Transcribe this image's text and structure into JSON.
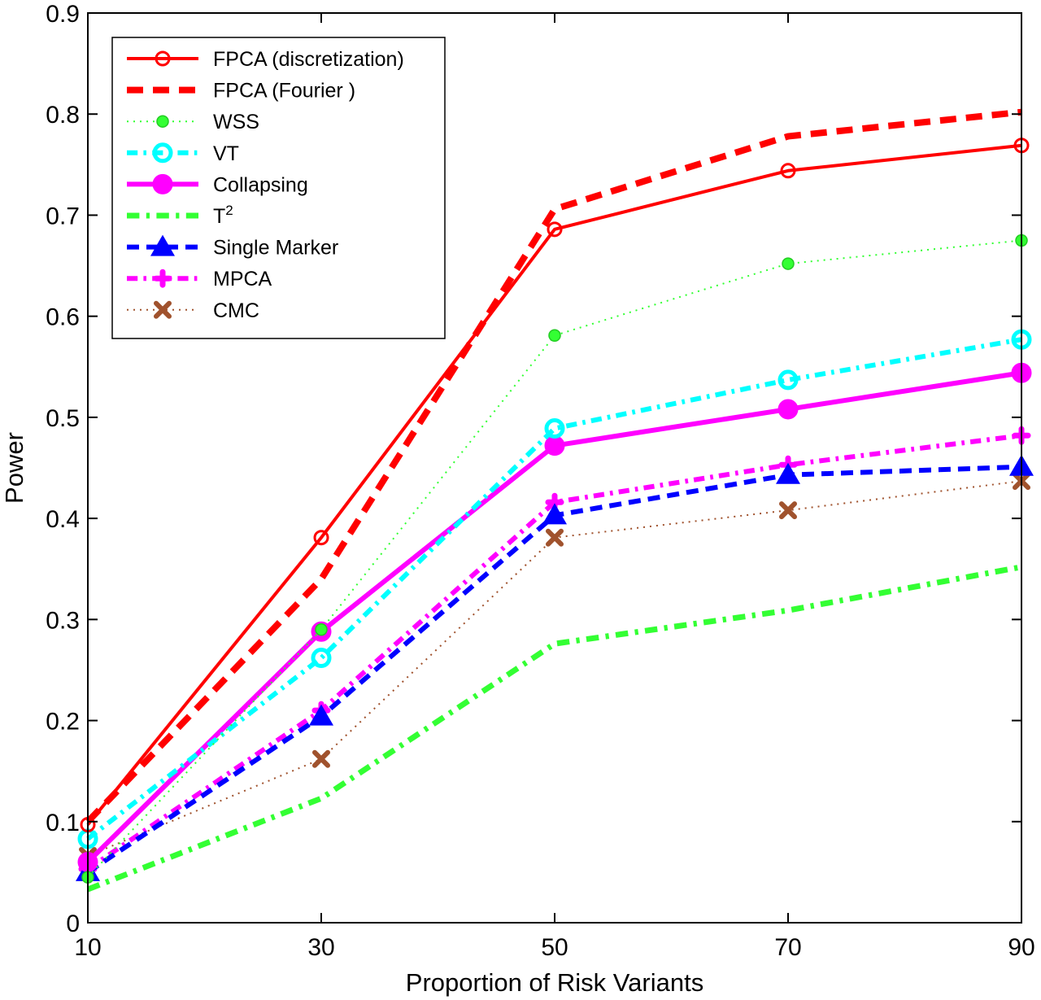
{
  "chart_data": {
    "type": "line",
    "xlabel": "Proportion of Risk Variants",
    "ylabel": "Power",
    "x": [
      10,
      30,
      50,
      70,
      90
    ],
    "xlim": [
      10,
      90
    ],
    "ylim": [
      0,
      0.9
    ],
    "xticks": [
      "10",
      "30",
      "50",
      "70",
      "90"
    ],
    "yticks": [
      "0",
      "0.1",
      "0.2",
      "0.3",
      "0.4",
      "0.5",
      "0.6",
      "0.7",
      "0.8",
      "0.9"
    ],
    "legend_position": "top-left",
    "grid": false,
    "series": [
      {
        "name": "FPCA (discretization)",
        "values": [
          0.097,
          0.381,
          0.686,
          0.744,
          0.769
        ],
        "color": "#ff0000",
        "dash": "solid",
        "marker": "circle-open",
        "width": 4
      },
      {
        "name": "FPCA (Fourier )",
        "values": [
          0.1,
          0.34,
          0.706,
          0.778,
          0.802
        ],
        "color": "#ff0000",
        "dash": "dash",
        "marker": "none",
        "width": 8
      },
      {
        "name": "WSS",
        "values": [
          0.045,
          0.29,
          0.581,
          0.652,
          0.675
        ],
        "color": "#33ff33",
        "dash": "dot",
        "marker": "dot",
        "width": 2
      },
      {
        "name": "VT",
        "values": [
          0.083,
          0.262,
          0.489,
          0.537,
          0.577
        ],
        "color": "#00ffff",
        "dash": "dashdot",
        "marker": "circle-open-large",
        "width": 6
      },
      {
        "name": "Collapsing",
        "values": [
          0.06,
          0.288,
          0.472,
          0.508,
          0.544
        ],
        "color": "#ff00ff",
        "dash": "solid",
        "marker": "circle-filled",
        "width": 6
      },
      {
        "name": "T",
        "sup": "2",
        "values": [
          0.033,
          0.123,
          0.276,
          0.309,
          0.352
        ],
        "color": "#33ff33",
        "dash": "dashdot",
        "marker": "none",
        "width": 7
      },
      {
        "name": "Single Marker",
        "values": [
          0.05,
          0.204,
          0.403,
          0.443,
          0.451
        ],
        "color": "#0000ff",
        "dash": "dash",
        "marker": "triangle",
        "width": 6
      },
      {
        "name": "MPCA",
        "values": [
          0.053,
          0.21,
          0.416,
          0.453,
          0.482
        ],
        "color": "#ff00ff",
        "dash": "dashdot",
        "marker": "plus",
        "width": 6
      },
      {
        "name": "CMC",
        "values": [
          0.066,
          0.162,
          0.381,
          0.408,
          0.437
        ],
        "color": "#a0522d",
        "dash": "dot",
        "marker": "x",
        "width": 2
      }
    ]
  }
}
